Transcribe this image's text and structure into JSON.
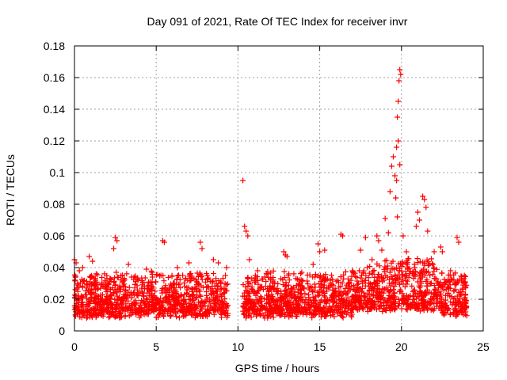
{
  "chart_data": {
    "type": "scatter",
    "title": "Day 091 of 2021, Rate Of TEC Index for receiver invr",
    "xlabel": "GPS time / hours",
    "ylabel": "ROTI / TECUs",
    "xlim": [
      0,
      25
    ],
    "ylim": [
      0,
      0.18
    ],
    "xticks": [
      0,
      5,
      10,
      15,
      20,
      25
    ],
    "yticks": [
      0,
      0.02,
      0.04,
      0.06,
      0.08,
      0.1,
      0.12,
      0.14,
      0.16,
      0.18
    ],
    "xtick_labels": [
      "0",
      "5",
      "10",
      "15",
      "20",
      "25"
    ],
    "ytick_labels": [
      "0",
      "0.02",
      "0.04",
      "0.06",
      "0.08",
      "0.1",
      "0.12",
      "0.14",
      "0.16",
      "0.18"
    ],
    "grid": true,
    "marker": "+",
    "marker_color": "#ff0000",
    "data_gap_hours": [
      9.4,
      10.3
    ],
    "series": [
      {
        "name": "ROTI",
        "points": [
          [
            0.0,
            0.045
          ],
          [
            0.1,
            0.043
          ],
          [
            0.3,
            0.038
          ],
          [
            0.5,
            0.04
          ],
          [
            0.9,
            0.047
          ],
          [
            1.1,
            0.044
          ],
          [
            2.5,
            0.059
          ],
          [
            2.6,
            0.057
          ],
          [
            2.4,
            0.052
          ],
          [
            3.3,
            0.042
          ],
          [
            4.4,
            0.039
          ],
          [
            5.4,
            0.057
          ],
          [
            5.5,
            0.056
          ],
          [
            6.3,
            0.04
          ],
          [
            7.0,
            0.043
          ],
          [
            7.7,
            0.056
          ],
          [
            7.8,
            0.052
          ],
          [
            8.5,
            0.045
          ],
          [
            8.8,
            0.043
          ],
          [
            9.3,
            0.04
          ],
          [
            10.3,
            0.095
          ],
          [
            10.4,
            0.066
          ],
          [
            10.5,
            0.063
          ],
          [
            10.6,
            0.06
          ],
          [
            10.7,
            0.045
          ],
          [
            11.2,
            0.038
          ],
          [
            12.0,
            0.033
          ],
          [
            12.8,
            0.05
          ],
          [
            12.9,
            0.048
          ],
          [
            13.0,
            0.047
          ],
          [
            13.9,
            0.037
          ],
          [
            14.6,
            0.042
          ],
          [
            14.9,
            0.055
          ],
          [
            15.0,
            0.05
          ],
          [
            15.3,
            0.051
          ],
          [
            16.3,
            0.061
          ],
          [
            16.4,
            0.06
          ],
          [
            17.0,
            0.038
          ],
          [
            17.5,
            0.051
          ],
          [
            17.8,
            0.059
          ],
          [
            18.2,
            0.045
          ],
          [
            18.5,
            0.06
          ],
          [
            18.6,
            0.057
          ],
          [
            18.8,
            0.051
          ],
          [
            19.0,
            0.071
          ],
          [
            19.2,
            0.062
          ],
          [
            19.3,
            0.088
          ],
          [
            19.4,
            0.104
          ],
          [
            19.5,
            0.11
          ],
          [
            19.6,
            0.098
          ],
          [
            19.7,
            0.116
          ],
          [
            19.75,
            0.135
          ],
          [
            19.8,
            0.145
          ],
          [
            19.85,
            0.158
          ],
          [
            19.9,
            0.165
          ],
          [
            19.95,
            0.162
          ],
          [
            19.7,
            0.095
          ],
          [
            19.65,
            0.084
          ],
          [
            19.8,
            0.12
          ],
          [
            19.9,
            0.105
          ],
          [
            19.75,
            0.072
          ],
          [
            20.1,
            0.06
          ],
          [
            20.3,
            0.05
          ],
          [
            20.9,
            0.066
          ],
          [
            21.0,
            0.075
          ],
          [
            21.1,
            0.07
          ],
          [
            21.3,
            0.085
          ],
          [
            21.4,
            0.083
          ],
          [
            21.5,
            0.078
          ],
          [
            21.6,
            0.063
          ],
          [
            22.0,
            0.05
          ],
          [
            22.4,
            0.053
          ],
          [
            22.5,
            0.05
          ],
          [
            23.0,
            0.038
          ],
          [
            23.4,
            0.059
          ],
          [
            23.5,
            0.056
          ],
          [
            23.9,
            0.031
          ]
        ]
      }
    ]
  }
}
